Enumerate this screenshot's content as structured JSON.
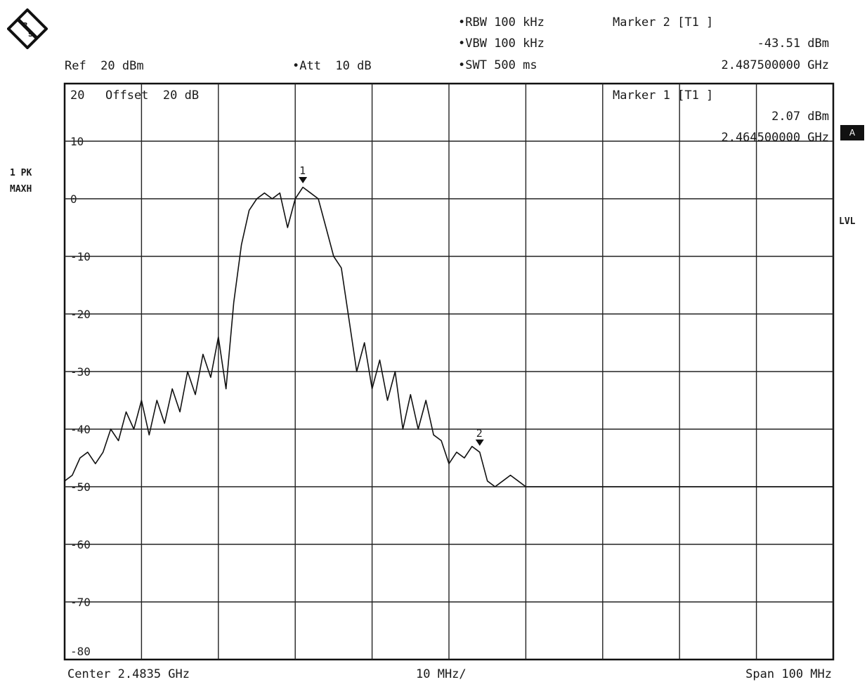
{
  "header": {
    "rbw": "RBW 100 kHz",
    "vbw": "VBW 100 kHz",
    "swt": "SWT 500 ms",
    "ref": "Ref  20 dBm",
    "att": "Att  10 dB",
    "marker2_title": "Marker 2 [T1 ]",
    "marker2_level": "-43.51 dBm",
    "marker2_freq": "2.487500000 GHz",
    "marker1_title": "Marker 1 [T1 ]",
    "marker1_level": "2.07 dBm",
    "marker1_freq": "2.464500000 GHz",
    "offset": "Offset  20 dB",
    "trace_label_1": "1 PK",
    "trace_label_2": "MAXH",
    "side_box": "A",
    "side_lvl": "LVL"
  },
  "footer": {
    "center": "Center 2.4835 GHz",
    "per_div": "10 MHz/",
    "span": "Span 100 MHz"
  },
  "chart_data": {
    "type": "line",
    "xlim": [
      2.4335,
      2.5335
    ],
    "ylim": [
      -82,
      20
    ],
    "y_ticks": [
      20,
      10,
      0,
      -10,
      -20,
      -30,
      -40,
      -50,
      -60,
      -70,
      -80
    ],
    "grid": true,
    "series": [
      {
        "x": [
          2.4335,
          2.4345,
          2.4355,
          2.4365,
          2.4375,
          2.4385,
          2.4395,
          2.4405,
          2.4415,
          2.4425,
          2.4435,
          2.4445,
          2.4455,
          2.4465,
          2.4475,
          2.4485,
          2.4495,
          2.4505,
          2.4515,
          2.4525,
          2.4535,
          2.4545,
          2.4555,
          2.4565,
          2.4575,
          2.4585,
          2.4595,
          2.4605,
          2.4615,
          2.4625,
          2.4635,
          2.4645,
          2.4655,
          2.4665,
          2.4675,
          2.4685,
          2.4695,
          2.4705,
          2.4715,
          2.4725,
          2.4735,
          2.4745,
          2.4755,
          2.4765,
          2.4775,
          2.4785,
          2.4795,
          2.4805,
          2.4815,
          2.4825,
          2.4835,
          2.4845,
          2.4855,
          2.4865,
          2.4875,
          2.4885,
          2.4895,
          2.4905,
          2.4915,
          2.4925,
          2.4935,
          2.4955,
          2.4975,
          2.4995,
          2.5015,
          2.5035,
          2.5055,
          2.5075,
          2.5095,
          2.5115,
          2.5135,
          2.5155,
          2.5175,
          2.5195,
          2.5215,
          2.5235,
          2.5255,
          2.5275,
          2.5295,
          2.5315,
          2.5335
        ],
        "y": [
          -49,
          -48,
          -45,
          -44,
          -46,
          -44,
          -40,
          -42,
          -37,
          -40,
          -35,
          -41,
          -35,
          -39,
          -33,
          -37,
          -30,
          -34,
          -27,
          -31,
          -24,
          -33,
          -18,
          -8,
          -2,
          0,
          1,
          0,
          1,
          -5,
          0,
          2,
          1,
          0,
          -5,
          -10,
          -12,
          -21,
          -30,
          -25,
          -33,
          -28,
          -35,
          -30,
          -40,
          -34,
          -40,
          -35,
          -41,
          -42,
          -46,
          -44,
          -45,
          -43,
          -44,
          -49,
          -50,
          -49,
          -48,
          -49,
          -50,
          -50,
          -50,
          -50,
          -50,
          -50,
          -50,
          -50,
          -50,
          -50,
          -50,
          -50,
          -50,
          -50,
          -50,
          -50,
          -50,
          -50,
          -50,
          -50,
          -50
        ]
      }
    ],
    "markers": [
      {
        "label": "1",
        "x": 2.4645,
        "y": 2.07
      },
      {
        "label": "2",
        "x": 2.4875,
        "y": -43.51
      }
    ]
  }
}
